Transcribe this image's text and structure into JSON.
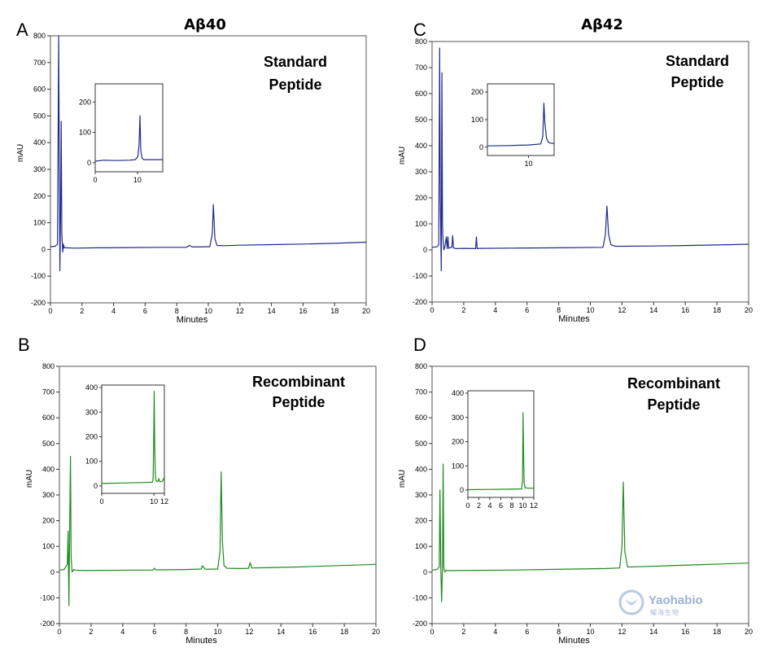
{
  "chart_data": [
    {
      "id": "A",
      "type": "line",
      "panel_letter": "A",
      "column_title": "Aβ40",
      "annotation": [
        "Standard",
        "Peptide"
      ],
      "xlabel": "Minutes",
      "ylabel": "mAU",
      "xlim": [
        0,
        20
      ],
      "ylim": [
        -200,
        800
      ],
      "xticks": [
        0,
        2,
        4,
        6,
        8,
        10,
        12,
        14,
        16,
        18,
        20
      ],
      "yticks": [
        -200,
        -100,
        0,
        100,
        200,
        300,
        400,
        500,
        600,
        700,
        800
      ],
      "color": "#1f2a8c",
      "series": [
        {
          "x": [
            0,
            0.3,
            0.45,
            0.52,
            0.56,
            0.6,
            0.64,
            0.68,
            0.72,
            0.78,
            0.82,
            0.86,
            0.9,
            1.0,
            1.5,
            3,
            5,
            7,
            8.6,
            8.8,
            9,
            10.1,
            10.25,
            10.32,
            10.42,
            10.55,
            11,
            12,
            14,
            16,
            18,
            20
          ],
          "y": [
            10,
            12,
            20,
            800,
            300,
            -80,
            120,
            480,
            60,
            -10,
            20,
            5,
            8,
            6,
            5,
            6,
            7,
            8,
            8,
            15,
            9,
            10,
            60,
            168,
            40,
            15,
            14,
            16,
            18,
            20,
            23,
            27
          ]
        }
      ],
      "inset": {
        "xlim": [
          0,
          16
        ],
        "ylim": [
          -30,
          260
        ],
        "xticks": [
          0,
          10
        ],
        "yticks": [
          0,
          100,
          200
        ],
        "series": [
          {
            "x": [
              0,
              2,
              5,
              8,
              9.5,
              10.1,
              10.4,
              10.6,
              10.8,
              11.1,
              11.5,
              13,
              16
            ],
            "y": [
              5,
              8,
              7,
              8,
              10,
              20,
              60,
              155,
              40,
              15,
              10,
              10,
              10
            ]
          }
        ]
      }
    },
    {
      "id": "C",
      "type": "line",
      "panel_letter": "C",
      "column_title": "Aβ42",
      "annotation": [
        "Standard",
        "Peptide"
      ],
      "xlabel": "Minutes",
      "ylabel": "mAU",
      "xlim": [
        0,
        20
      ],
      "ylim": [
        -200,
        800
      ],
      "xticks": [
        0,
        2,
        4,
        6,
        8,
        10,
        12,
        14,
        16,
        18,
        20
      ],
      "yticks": [
        -200,
        -100,
        0,
        100,
        200,
        300,
        400,
        500,
        600,
        700,
        800
      ],
      "color": "#1f2a8c",
      "series": [
        {
          "x": [
            0,
            0.3,
            0.42,
            0.48,
            0.52,
            0.58,
            0.62,
            0.66,
            0.7,
            0.74,
            0.8,
            0.9,
            0.95,
            1.0,
            1.05,
            1.1,
            1.25,
            1.3,
            1.35,
            1.5,
            2,
            2.75,
            2.8,
            2.85,
            3,
            5,
            8,
            10.8,
            10.95,
            11.05,
            11.15,
            11.3,
            11.6,
            12,
            14,
            16,
            18,
            20
          ],
          "y": [
            10,
            12,
            20,
            775,
            200,
            -80,
            680,
            100,
            30,
            0,
            10,
            50,
            5,
            50,
            6,
            8,
            10,
            55,
            8,
            5,
            6,
            5,
            50,
            5,
            6,
            7,
            8,
            10,
            60,
            168,
            60,
            20,
            14,
            14,
            15,
            17,
            19,
            22
          ]
        }
      ],
      "inset": {
        "xlim": [
          6,
          12.5
        ],
        "ylim": [
          -30,
          230
        ],
        "xticks": [
          10
        ],
        "yticks": [
          0,
          100,
          200
        ],
        "series": [
          {
            "x": [
              6,
              8,
              10,
              11.2,
              11.4,
              11.5,
              11.6,
              11.75,
              11.9,
              12.1,
              12.5
            ],
            "y": [
              5,
              6,
              8,
              12,
              40,
              160,
              90,
              35,
              20,
              15,
              14
            ]
          }
        ]
      }
    },
    {
      "id": "B",
      "type": "line",
      "panel_letter": "B",
      "column_title": "",
      "annotation": [
        "Recombinant",
        "Peptide"
      ],
      "xlabel": "Minutes",
      "ylabel": "mAU",
      "xlim": [
        0,
        20
      ],
      "ylim": [
        -200,
        800
      ],
      "xticks": [
        0,
        2,
        4,
        6,
        8,
        10,
        12,
        14,
        16,
        18,
        20
      ],
      "yticks": [
        -200,
        -100,
        0,
        100,
        200,
        300,
        400,
        500,
        600,
        700,
        800
      ],
      "color": "#1e8a1e",
      "series": [
        {
          "x": [
            0,
            0.3,
            0.5,
            0.55,
            0.6,
            0.64,
            0.7,
            0.74,
            0.8,
            0.9,
            1.0,
            1.5,
            3,
            5,
            5.9,
            6,
            6.1,
            8,
            8.95,
            9.05,
            9.2,
            10,
            10.15,
            10.22,
            10.3,
            10.4,
            10.6,
            11.5,
            11.95,
            12.05,
            12.15,
            13,
            15,
            17,
            20
          ],
          "y": [
            8,
            10,
            30,
            160,
            -130,
            100,
            450,
            60,
            0,
            10,
            8,
            6,
            7,
            8,
            8,
            15,
            9,
            10,
            12,
            25,
            11,
            12,
            80,
            390,
            120,
            25,
            15,
            14,
            15,
            37,
            16,
            17,
            20,
            24,
            30
          ]
        }
      ],
      "inset": {
        "xlim": [
          0,
          12
        ],
        "ylim": [
          -30,
          410
        ],
        "xticks": [
          0,
          10,
          12
        ],
        "yticks": [
          0,
          100,
          200,
          300,
          400
        ],
        "series": [
          {
            "x": [
              0,
              4,
              8,
              9.7,
              9.85,
              9.95,
              10.05,
              10.15,
              10.3,
              10.5,
              10.8,
              10.95,
              11.1,
              11.5,
              11.8,
              11.9,
              12
            ],
            "y": [
              10,
              12,
              14,
              15,
              30,
              160,
              385,
              160,
              30,
              18,
              20,
              30,
              18,
              17,
              25,
              32,
              28
            ]
          }
        ]
      }
    },
    {
      "id": "D",
      "type": "line",
      "panel_letter": "D",
      "column_title": "",
      "annotation": [
        "Recombinant",
        "Peptide"
      ],
      "xlabel": "Minutes",
      "ylabel": "mAU",
      "xlim": [
        0,
        20
      ],
      "ylim": [
        -200,
        800
      ],
      "xticks": [
        0,
        2,
        4,
        6,
        8,
        10,
        12,
        14,
        16,
        18,
        20
      ],
      "yticks": [
        -200,
        -100,
        0,
        100,
        200,
        300,
        400,
        500,
        600,
        700,
        800
      ],
      "color": "#1e8a1e",
      "series": [
        {
          "x": [
            0,
            0.3,
            0.45,
            0.5,
            0.55,
            0.6,
            0.66,
            0.7,
            0.74,
            0.8,
            0.9,
            1.0,
            1.5,
            3,
            5,
            7,
            9,
            11,
            11.85,
            12,
            12.08,
            12.18,
            12.35,
            13,
            15,
            17,
            20
          ],
          "y": [
            8,
            10,
            20,
            320,
            20,
            -115,
            20,
            420,
            20,
            0,
            8,
            6,
            6,
            7,
            8,
            10,
            12,
            14,
            16,
            100,
            350,
            80,
            20,
            21,
            25,
            29,
            35
          ]
        }
      ],
      "inset": {
        "xlim": [
          0,
          12
        ],
        "ylim": [
          -30,
          410
        ],
        "xticks": [
          0,
          2,
          4,
          6,
          8,
          10,
          12
        ],
        "yticks": [
          0,
          100,
          200,
          300,
          400
        ],
        "series": [
          {
            "x": [
              0,
              4,
              8,
              9.8,
              9.95,
              10.05,
              10.15,
              10.25,
              10.4,
              11,
              12
            ],
            "y": [
              2,
              3,
              4,
              5,
              40,
              320,
              140,
              30,
              10,
              8,
              8
            ]
          }
        ]
      }
    }
  ],
  "watermark": {
    "brand": "Yaohabio",
    "sub": "耀海生物",
    "icon": "leaf-shield-icon"
  }
}
